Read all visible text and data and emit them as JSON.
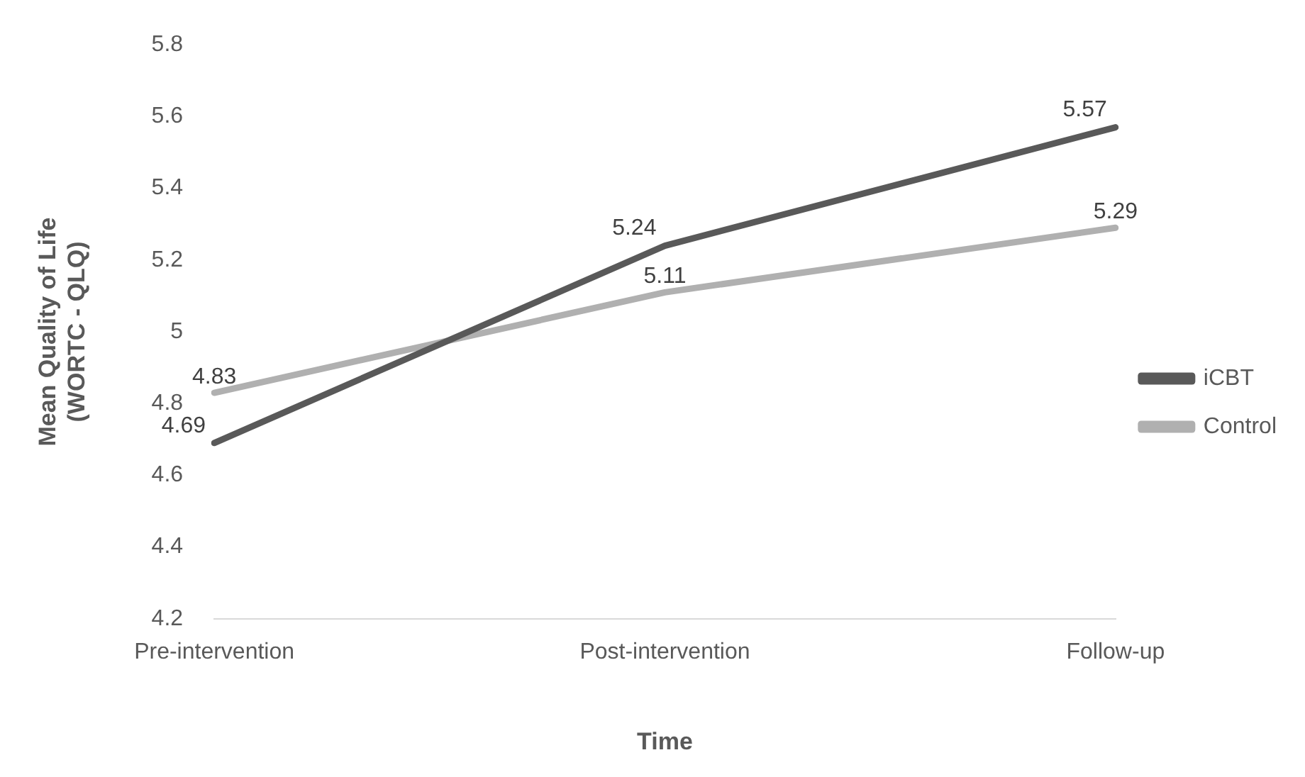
{
  "chart_data": {
    "type": "line",
    "xlabel": "Time",
    "ylabel": "Mean Quality of Life\n(WORTC - QLQ)",
    "categories": [
      "Pre-intervention",
      "Post-intervention",
      "Follow-up"
    ],
    "series": [
      {
        "name": "iCBT",
        "color": "#595959",
        "values": [
          4.69,
          5.24,
          5.57
        ]
      },
      {
        "name": "Control",
        "color": "#b0b0b0",
        "values": [
          4.83,
          5.11,
          5.29
        ]
      }
    ],
    "ylim": [
      4.2,
      5.8
    ],
    "yticks": [
      4.2,
      4.4,
      4.6,
      4.8,
      5,
      5.2,
      5.4,
      5.6,
      5.8
    ],
    "grid": false,
    "legend": "right",
    "marker": "none",
    "line_style": "solid",
    "data_labels": true
  }
}
